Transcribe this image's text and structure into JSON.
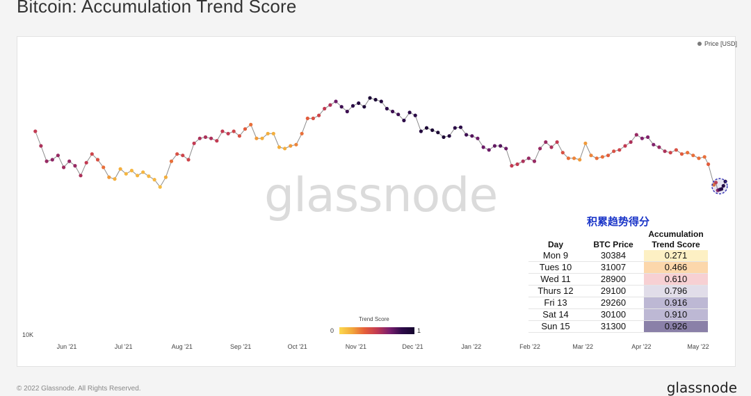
{
  "header": {
    "title": "Bitcoin: Accumulation Trend Score"
  },
  "legend": {
    "label": "Price [USD]",
    "dot_color": "#7a7a7a"
  },
  "watermark": "glassnode",
  "y_axis": {
    "tick_label": "10K"
  },
  "colorbar": {
    "title": "Trend Score",
    "min_label": "0",
    "max_label": "1"
  },
  "table": {
    "title": "积累趋势得分",
    "headers": {
      "day": "Day",
      "price": "BTC Price",
      "score_line1": "Accumulation",
      "score_line2": "Trend Score"
    },
    "rows": [
      {
        "day": "Mon 9",
        "price": "30384",
        "score": "0.271",
        "color": "#fdf0c4"
      },
      {
        "day": "Tues 10",
        "price": "31007",
        "score": "0.466",
        "color": "#fcd7ab"
      },
      {
        "day": "Wed 11",
        "price": "28900",
        "score": "0.610",
        "color": "#f7d0d3"
      },
      {
        "day": "Thurs 12",
        "price": "29100",
        "score": "0.796",
        "color": "#e1dde9"
      },
      {
        "day": "Fri 13",
        "price": "29260",
        "score": "0.916",
        "color": "#bdb8d4"
      },
      {
        "day": "Sat 14",
        "price": "30100",
        "score": "0.910",
        "color": "#bdb8d4"
      },
      {
        "day": "Sun 15",
        "price": "31300",
        "score": "0.926",
        "color": "#8a80a8"
      }
    ]
  },
  "footer": {
    "copyright": "© 2022 Glassnode. All Rights Reserved.",
    "brand": "glassnode"
  },
  "chart_data": {
    "type": "scatter",
    "title": "Bitcoin: Accumulation Trend Score",
    "series_name": "Price [USD]",
    "x_ticks": [
      "Jun '21",
      "Jul '21",
      "Aug '21",
      "Sep '21",
      "Oct '21",
      "Nov '21",
      "Dec '21",
      "Jan '22",
      "Feb '22",
      "Mar '22",
      "Apr '22",
      "May '22"
    ],
    "y_ticks": [
      "10K"
    ],
    "y_scale": "log",
    "color_scale": {
      "name": "Trend Score",
      "range": [
        0,
        1
      ],
      "colors": [
        "#fcd94f",
        "#f2a93b",
        "#e6603a",
        "#c23a52",
        "#7a1f6e",
        "#2e0b4a",
        "#14062e"
      ]
    },
    "points": [
      [
        "2021-05-15",
        49000,
        0.5
      ],
      [
        "2021-05-18",
        43000,
        0.55
      ],
      [
        "2021-05-21",
        37500,
        0.6
      ],
      [
        "2021-05-24",
        38000,
        0.62
      ],
      [
        "2021-05-27",
        39500,
        0.6
      ],
      [
        "2021-05-30",
        35500,
        0.58
      ],
      [
        "2021-06-02",
        37500,
        0.6
      ],
      [
        "2021-06-05",
        36000,
        0.6
      ],
      [
        "2021-06-08",
        33000,
        0.55
      ],
      [
        "2021-06-11",
        37000,
        0.5
      ],
      [
        "2021-06-14",
        40000,
        0.45
      ],
      [
        "2021-06-17",
        38000,
        0.4
      ],
      [
        "2021-06-20",
        35500,
        0.3
      ],
      [
        "2021-06-23",
        32500,
        0.2
      ],
      [
        "2021-06-26",
        32000,
        0.15
      ],
      [
        "2021-06-29",
        35000,
        0.15
      ],
      [
        "2021-07-02",
        33500,
        0.12
      ],
      [
        "2021-07-05",
        34500,
        0.12
      ],
      [
        "2021-07-08",
        33000,
        0.12
      ],
      [
        "2021-07-11",
        34000,
        0.12
      ],
      [
        "2021-07-14",
        32800,
        0.12
      ],
      [
        "2021-07-17",
        31800,
        0.12
      ],
      [
        "2021-07-20",
        29800,
        0.1
      ],
      [
        "2021-07-23",
        32500,
        0.15
      ],
      [
        "2021-07-26",
        37500,
        0.3
      ],
      [
        "2021-07-29",
        40000,
        0.4
      ],
      [
        "2021-08-01",
        39500,
        0.45
      ],
      [
        "2021-08-04",
        38000,
        0.45
      ],
      [
        "2021-08-07",
        44000,
        0.5
      ],
      [
        "2021-08-10",
        46000,
        0.55
      ],
      [
        "2021-08-13",
        46500,
        0.55
      ],
      [
        "2021-08-16",
        46000,
        0.55
      ],
      [
        "2021-08-19",
        45000,
        0.5
      ],
      [
        "2021-08-22",
        49000,
        0.5
      ],
      [
        "2021-08-25",
        48000,
        0.5
      ],
      [
        "2021-08-28",
        49000,
        0.45
      ],
      [
        "2021-08-31",
        47000,
        0.4
      ],
      [
        "2021-09-03",
        50000,
        0.35
      ],
      [
        "2021-09-06",
        52000,
        0.3
      ],
      [
        "2021-09-09",
        46000,
        0.2
      ],
      [
        "2021-09-12",
        46000,
        0.15
      ],
      [
        "2021-09-15",
        48000,
        0.15
      ],
      [
        "2021-09-18",
        48000,
        0.15
      ],
      [
        "2021-09-21",
        42500,
        0.15
      ],
      [
        "2021-09-24",
        42000,
        0.15
      ],
      [
        "2021-09-27",
        43000,
        0.2
      ],
      [
        "2021-09-30",
        43500,
        0.25
      ],
      [
        "2021-10-03",
        48000,
        0.3
      ],
      [
        "2021-10-06",
        55000,
        0.35
      ],
      [
        "2021-10-09",
        55000,
        0.4
      ],
      [
        "2021-10-12",
        56500,
        0.45
      ],
      [
        "2021-10-15",
        60000,
        0.5
      ],
      [
        "2021-10-18",
        62000,
        0.55
      ],
      [
        "2021-10-21",
        64000,
        0.7
      ],
      [
        "2021-10-24",
        61000,
        0.8
      ],
      [
        "2021-10-27",
        58500,
        0.8
      ],
      [
        "2021-10-30",
        61500,
        0.85
      ],
      [
        "2021-11-02",
        63000,
        0.9
      ],
      [
        "2021-11-05",
        61000,
        0.95
      ],
      [
        "2021-11-08",
        66000,
        0.95
      ],
      [
        "2021-11-11",
        65000,
        0.95
      ],
      [
        "2021-11-14",
        64000,
        0.9
      ],
      [
        "2021-11-17",
        60000,
        0.85
      ],
      [
        "2021-11-20",
        58500,
        0.8
      ],
      [
        "2021-11-23",
        57000,
        0.8
      ],
      [
        "2021-11-26",
        54000,
        0.85
      ],
      [
        "2021-11-29",
        58000,
        0.85
      ],
      [
        "2021-12-02",
        56500,
        0.85
      ],
      [
        "2021-12-05",
        49000,
        0.9
      ],
      [
        "2021-12-08",
        50500,
        0.95
      ],
      [
        "2021-12-11",
        49500,
        0.95
      ],
      [
        "2021-12-14",
        48500,
        0.95
      ],
      [
        "2021-12-17",
        46500,
        0.95
      ],
      [
        "2021-12-20",
        47000,
        0.9
      ],
      [
        "2021-12-23",
        50500,
        0.85
      ],
      [
        "2021-12-26",
        50800,
        0.85
      ],
      [
        "2021-12-29",
        47500,
        0.8
      ],
      [
        "2022-01-01",
        47000,
        0.75
      ],
      [
        "2022-01-04",
        46000,
        0.7
      ],
      [
        "2022-01-07",
        42500,
        0.7
      ],
      [
        "2022-01-10",
        41500,
        0.7
      ],
      [
        "2022-01-13",
        43000,
        0.72
      ],
      [
        "2022-01-16",
        43000,
        0.75
      ],
      [
        "2022-01-19",
        42000,
        0.7
      ],
      [
        "2022-01-22",
        36000,
        0.5
      ],
      [
        "2022-01-25",
        36500,
        0.5
      ],
      [
        "2022-01-28",
        37500,
        0.55
      ],
      [
        "2022-01-31",
        38500,
        0.6
      ],
      [
        "2022-02-03",
        37500,
        0.6
      ],
      [
        "2022-02-06",
        42000,
        0.6
      ],
      [
        "2022-02-09",
        44500,
        0.6
      ],
      [
        "2022-02-12",
        42500,
        0.55
      ],
      [
        "2022-02-15",
        44500,
        0.5
      ],
      [
        "2022-02-18",
        40500,
        0.4
      ],
      [
        "2022-02-21",
        38500,
        0.3
      ],
      [
        "2022-02-24",
        38500,
        0.25
      ],
      [
        "2022-02-27",
        38000,
        0.2
      ],
      [
        "2022-03-02",
        44000,
        0.2
      ],
      [
        "2022-03-05",
        39500,
        0.25
      ],
      [
        "2022-03-08",
        38500,
        0.3
      ],
      [
        "2022-03-11",
        39000,
        0.3
      ],
      [
        "2022-03-14",
        39500,
        0.35
      ],
      [
        "2022-03-17",
        41000,
        0.4
      ],
      [
        "2022-03-20",
        41500,
        0.45
      ],
      [
        "2022-03-23",
        43000,
        0.5
      ],
      [
        "2022-03-26",
        44500,
        0.55
      ],
      [
        "2022-03-29",
        47500,
        0.6
      ],
      [
        "2022-04-01",
        46000,
        0.65
      ],
      [
        "2022-04-04",
        46500,
        0.65
      ],
      [
        "2022-04-07",
        43500,
        0.65
      ],
      [
        "2022-04-10",
        42500,
        0.6
      ],
      [
        "2022-04-13",
        41000,
        0.55
      ],
      [
        "2022-04-16",
        40500,
        0.45
      ],
      [
        "2022-04-19",
        41500,
        0.4
      ],
      [
        "2022-04-22",
        40000,
        0.35
      ],
      [
        "2022-04-25",
        40500,
        0.3
      ],
      [
        "2022-04-28",
        39500,
        0.3
      ],
      [
        "2022-05-01",
        38500,
        0.3
      ],
      [
        "2022-05-04",
        39000,
        0.3
      ],
      [
        "2022-05-06",
        36500,
        0.35
      ],
      [
        "2022-05-09",
        30384,
        0.271
      ],
      [
        "2022-05-10",
        31007,
        0.466
      ],
      [
        "2022-05-11",
        28900,
        0.61
      ],
      [
        "2022-05-12",
        29100,
        0.796
      ],
      [
        "2022-05-13",
        29260,
        0.916
      ],
      [
        "2022-05-14",
        30100,
        0.91
      ],
      [
        "2022-05-15",
        31300,
        0.926
      ]
    ]
  }
}
